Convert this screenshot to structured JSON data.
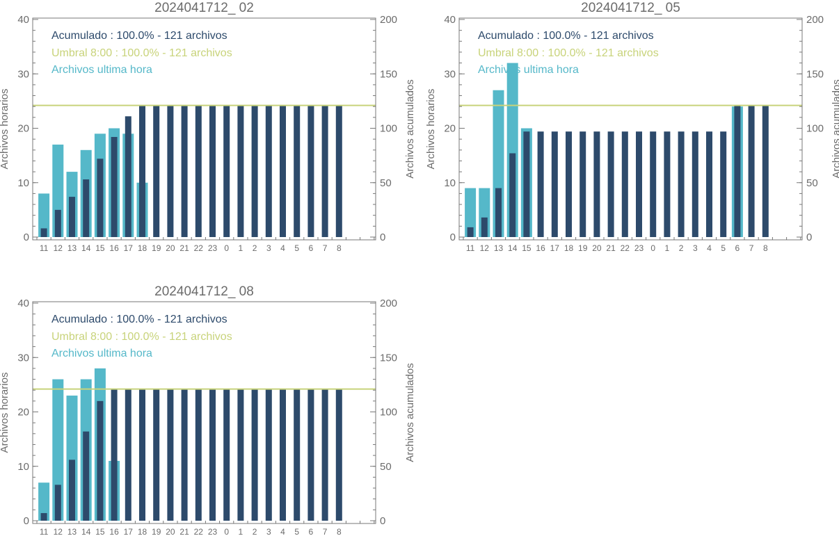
{
  "colors": {
    "hourly": "#55b8c9",
    "cumulative": "#2d4a6b",
    "threshold": "#c8d37a",
    "axis": "#777777",
    "text": "#6b6b6b"
  },
  "chart_data": [
    {
      "type": "bar",
      "title": "2024041712_ 02",
      "ylabel_left": "Archivos horarios",
      "ylabel_right": "Archivos acumulados",
      "ylim_left": [
        0,
        40
      ],
      "ylim_right": [
        0,
        200
      ],
      "yticks_left": [
        "0",
        "10",
        "20",
        "30",
        "40"
      ],
      "yticks_right": [
        "0",
        "50",
        "100",
        "150",
        "200"
      ],
      "categories": [
        "11",
        "12",
        "13",
        "14",
        "15",
        "16",
        "17",
        "18",
        "19",
        "20",
        "21",
        "22",
        "23",
        "0",
        "1",
        "2",
        "3",
        "4",
        "5",
        "6",
        "7",
        "8"
      ],
      "legend": {
        "cumulative": "Acumulado : 100.0% - 121 archivos",
        "threshold": "Umbral 8:00 : 100.0% - 121 archivos",
        "hourly": "Archivos ultima hora"
      },
      "threshold": 121,
      "series": [
        {
          "values": [
            8,
            17,
            12,
            16,
            19,
            20,
            19,
            10,
            0,
            0,
            0,
            0,
            0,
            0,
            0,
            0,
            0,
            0,
            0,
            0,
            0,
            0
          ]
        },
        {
          "values": [
            8,
            25,
            37,
            53,
            72,
            92,
            111,
            121,
            121,
            121,
            121,
            121,
            121,
            121,
            121,
            121,
            121,
            121,
            121,
            121,
            121,
            121
          ]
        }
      ]
    },
    {
      "type": "bar",
      "title": "2024041712_ 05",
      "ylabel_left": "Archivos horarios",
      "ylabel_right": "Archivos acumulados",
      "ylim_left": [
        0,
        40
      ],
      "ylim_right": [
        0,
        200
      ],
      "yticks_left": [
        "0",
        "10",
        "20",
        "30",
        "40"
      ],
      "yticks_right": [
        "0",
        "50",
        "100",
        "150",
        "200"
      ],
      "categories": [
        "11",
        "12",
        "13",
        "14",
        "15",
        "16",
        "17",
        "18",
        "19",
        "20",
        "21",
        "22",
        "23",
        "0",
        "1",
        "2",
        "3",
        "4",
        "5",
        "6",
        "7",
        "8"
      ],
      "legend": {
        "cumulative": "Acumulado : 100.0% - 121 archivos",
        "threshold": "Umbral 8:00 : 100.0% - 121 archivos",
        "hourly": "Archivos ultima hora"
      },
      "threshold": 121,
      "series": [
        {
          "values": [
            9,
            9,
            27,
            32,
            20,
            0,
            0,
            0,
            0,
            0,
            0,
            0,
            0,
            0,
            0,
            0,
            0,
            0,
            0,
            24,
            0,
            0
          ]
        },
        {
          "values": [
            9,
            18,
            45,
            77,
            97,
            97,
            97,
            97,
            97,
            97,
            97,
            97,
            97,
            97,
            97,
            97,
            97,
            97,
            97,
            121,
            121,
            121
          ]
        }
      ]
    },
    {
      "type": "bar",
      "title": "2024041712_ 08",
      "ylabel_left": "Archivos horarios",
      "ylabel_right": "Archivos acumulados",
      "ylim_left": [
        0,
        40
      ],
      "ylim_right": [
        0,
        200
      ],
      "yticks_left": [
        "0",
        "10",
        "20",
        "30",
        "40"
      ],
      "yticks_right": [
        "0",
        "50",
        "100",
        "150",
        "200"
      ],
      "categories": [
        "11",
        "12",
        "13",
        "14",
        "15",
        "16",
        "17",
        "18",
        "19",
        "20",
        "21",
        "22",
        "23",
        "0",
        "1",
        "2",
        "3",
        "4",
        "5",
        "6",
        "7",
        "8"
      ],
      "legend": {
        "cumulative": "Acumulado : 100.0% - 121 archivos",
        "threshold": "Umbral 8:00 : 100.0% - 121 archivos",
        "hourly": "Archivos ultima hora"
      },
      "threshold": 121,
      "series": [
        {
          "values": [
            7,
            26,
            23,
            26,
            28,
            11,
            0,
            0,
            0,
            0,
            0,
            0,
            0,
            0,
            0,
            0,
            0,
            0,
            0,
            0,
            0,
            0
          ]
        },
        {
          "values": [
            7,
            33,
            56,
            82,
            110,
            121,
            121,
            121,
            121,
            121,
            121,
            121,
            121,
            121,
            121,
            121,
            121,
            121,
            121,
            121,
            121,
            121
          ]
        }
      ]
    }
  ]
}
